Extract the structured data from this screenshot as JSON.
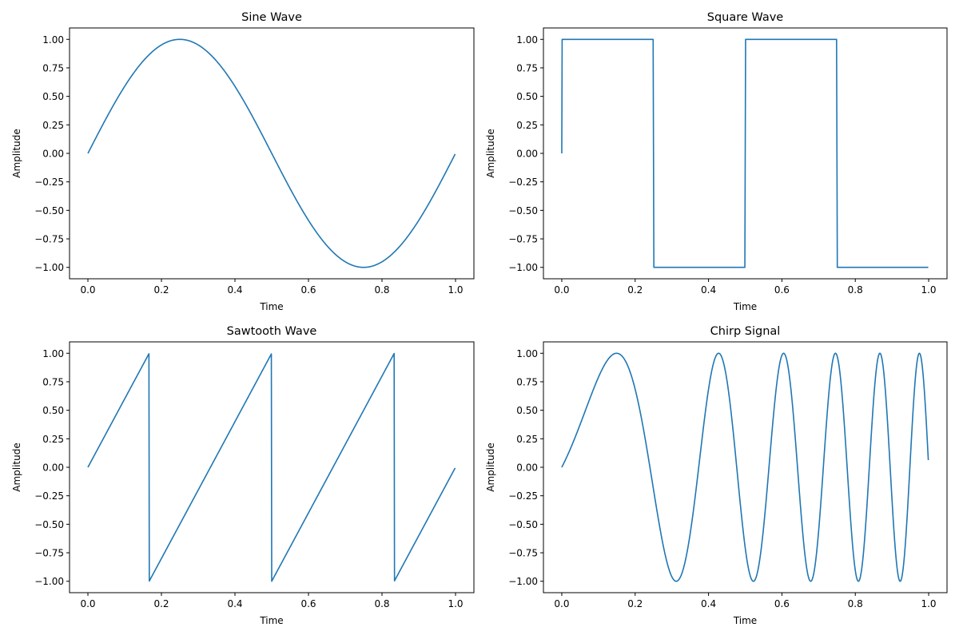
{
  "chart_data": [
    {
      "type": "line",
      "title": "Sine Wave",
      "xlabel": "Time",
      "ylabel": "Amplitude",
      "xlim": [
        -0.05,
        1.05
      ],
      "ylim": [
        -1.1,
        1.1
      ],
      "xticks": [
        "0.0",
        "0.2",
        "0.4",
        "0.6",
        "0.8",
        "1.0"
      ],
      "yticks": [
        "−1.00",
        "−0.75",
        "−0.50",
        "−0.25",
        "0.00",
        "0.25",
        "0.50",
        "0.75",
        "1.00"
      ],
      "grid": false,
      "series": [
        {
          "waveform": "sine",
          "frequency": 1,
          "t_start": 0,
          "t_end": 1,
          "samples": 1000,
          "color": "#1f77b4"
        }
      ]
    },
    {
      "type": "line",
      "title": "Square Wave",
      "xlabel": "Time",
      "ylabel": "Amplitude",
      "xlim": [
        -0.05,
        1.05
      ],
      "ylim": [
        -1.1,
        1.1
      ],
      "xticks": [
        "0.0",
        "0.2",
        "0.4",
        "0.6",
        "0.8",
        "1.0"
      ],
      "yticks": [
        "−1.00",
        "−0.75",
        "−0.50",
        "−0.25",
        "0.00",
        "0.25",
        "0.50",
        "0.75",
        "1.00"
      ],
      "grid": false,
      "series": [
        {
          "waveform": "square",
          "frequency": 2,
          "t_start": 0,
          "t_end": 1,
          "samples": 1000,
          "color": "#1f77b4"
        }
      ]
    },
    {
      "type": "line",
      "title": "Sawtooth Wave",
      "xlabel": "Time",
      "ylabel": "Amplitude",
      "xlim": [
        -0.05,
        1.05
      ],
      "ylim": [
        -1.1,
        1.1
      ],
      "xticks": [
        "0.0",
        "0.2",
        "0.4",
        "0.6",
        "0.8",
        "1.0"
      ],
      "yticks": [
        "−1.00",
        "−0.75",
        "−0.50",
        "−0.25",
        "0.00",
        "0.25",
        "0.50",
        "0.75",
        "1.00"
      ],
      "grid": false,
      "series": [
        {
          "waveform": "sawtooth",
          "frequency": 3,
          "phase_cycles": 0.5,
          "t_start": 0,
          "t_end": 1,
          "samples": 1000,
          "color": "#1f77b4"
        }
      ]
    },
    {
      "type": "line",
      "title": "Chirp Signal",
      "xlabel": "Time",
      "ylabel": "Amplitude",
      "xlim": [
        -0.05,
        1.05
      ],
      "ylim": [
        -1.1,
        1.1
      ],
      "xticks": [
        "0.0",
        "0.2",
        "0.4",
        "0.6",
        "0.8",
        "1.0"
      ],
      "yticks": [
        "−1.00",
        "−0.75",
        "−0.50",
        "−0.25",
        "0.00",
        "0.25",
        "0.50",
        "0.75",
        "1.00"
      ],
      "grid": false,
      "series": [
        {
          "waveform": "linear-chirp",
          "f0": 1,
          "f1": 10,
          "t_start": 0,
          "t_end": 1,
          "samples": 1000,
          "color": "#1f77b4"
        }
      ]
    }
  ]
}
